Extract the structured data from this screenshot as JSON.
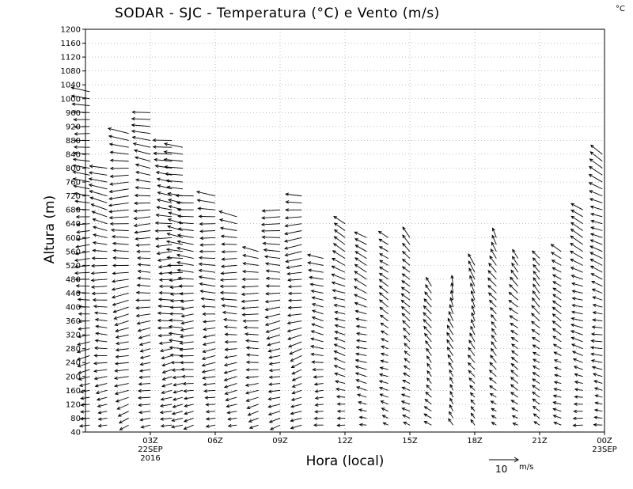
{
  "chart_data": {
    "type": "wind-barb-profile",
    "title": "SODAR - SJC - Temperatura (°C) e Vento (m/s)",
    "corner_unit": "°C",
    "xlabel": "Hora (local)",
    "ylabel": "Altura (m)",
    "ylim": [
      40,
      1200
    ],
    "xlim_hours": [
      0,
      24
    ],
    "grid": true,
    "y_ticks": [
      40,
      80,
      120,
      160,
      200,
      240,
      280,
      320,
      360,
      400,
      440,
      480,
      520,
      560,
      600,
      640,
      680,
      720,
      760,
      800,
      840,
      880,
      920,
      960,
      1000,
      1040,
      1080,
      1120,
      1160,
      1200
    ],
    "x_ticks": [
      {
        "hour": 3,
        "label": "03Z",
        "sub1": "22SEP",
        "sub2": "2016"
      },
      {
        "hour": 6,
        "label": "06Z",
        "sub1": "",
        "sub2": ""
      },
      {
        "hour": 9,
        "label": "09Z",
        "sub1": "",
        "sub2": ""
      },
      {
        "hour": 12,
        "label": "12Z",
        "sub1": "",
        "sub2": ""
      },
      {
        "hour": 15,
        "label": "15Z",
        "sub1": "",
        "sub2": ""
      },
      {
        "hour": 18,
        "label": "18Z",
        "sub1": "",
        "sub2": ""
      },
      {
        "hour": 21,
        "label": "21Z",
        "sub1": "",
        "sub2": ""
      },
      {
        "hour": 24,
        "label": "00Z",
        "sub1": "23SEP",
        "sub2": ""
      }
    ],
    "reference_vector": {
      "label": "10",
      "unit": "m/s",
      "speed": 10
    },
    "wind_profiles": [
      {
        "hour": 0.2,
        "top": 1030,
        "dir": 100,
        "speed": 6
      },
      {
        "hour": 1.0,
        "top": 800,
        "dir": 105,
        "speed": 6
      },
      {
        "hour": 2.0,
        "top": 900,
        "dir": 95,
        "speed": 7
      },
      {
        "hour": 3.0,
        "top": 960,
        "dir": 100,
        "speed": 6
      },
      {
        "hour": 4.0,
        "top": 890,
        "dir": 100,
        "speed": 6
      },
      {
        "hour": 4.5,
        "top": 860,
        "dir": 105,
        "speed": 6
      },
      {
        "hour": 5.0,
        "top": 720,
        "dir": 100,
        "speed": 6
      },
      {
        "hour": 6.0,
        "top": 720,
        "dir": 100,
        "speed": 6
      },
      {
        "hour": 7.0,
        "top": 660,
        "dir": 100,
        "speed": 6
      },
      {
        "hour": 8.0,
        "top": 560,
        "dir": 100,
        "speed": 6
      },
      {
        "hour": 9.0,
        "top": 680,
        "dir": 95,
        "speed": 6
      },
      {
        "hour": 10.0,
        "top": 720,
        "dir": 90,
        "speed": 6
      },
      {
        "hour": 11.0,
        "top": 540,
        "dir": 110,
        "speed": 5
      },
      {
        "hour": 12.0,
        "top": 640,
        "dir": 120,
        "speed": 5
      },
      {
        "hour": 13.0,
        "top": 610,
        "dir": 120,
        "speed": 5
      },
      {
        "hour": 14.0,
        "top": 600,
        "dir": 130,
        "speed": 4
      },
      {
        "hour": 15.0,
        "top": 610,
        "dir": 140,
        "speed": 4
      },
      {
        "hour": 16.0,
        "top": 460,
        "dir": 150,
        "speed": 4
      },
      {
        "hour": 17.0,
        "top": 470,
        "dir": 165,
        "speed": 4
      },
      {
        "hour": 18.0,
        "top": 530,
        "dir": 160,
        "speed": 4
      },
      {
        "hour": 19.0,
        "top": 610,
        "dir": 150,
        "speed": 4
      },
      {
        "hour": 20.0,
        "top": 540,
        "dir": 140,
        "speed": 4
      },
      {
        "hour": 21.0,
        "top": 540,
        "dir": 140,
        "speed": 4
      },
      {
        "hour": 22.0,
        "top": 560,
        "dir": 130,
        "speed": 4
      },
      {
        "hour": 23.0,
        "top": 680,
        "dir": 120,
        "speed": 5
      },
      {
        "hour": 23.9,
        "top": 850,
        "dir": 120,
        "speed": 5
      }
    ]
  }
}
